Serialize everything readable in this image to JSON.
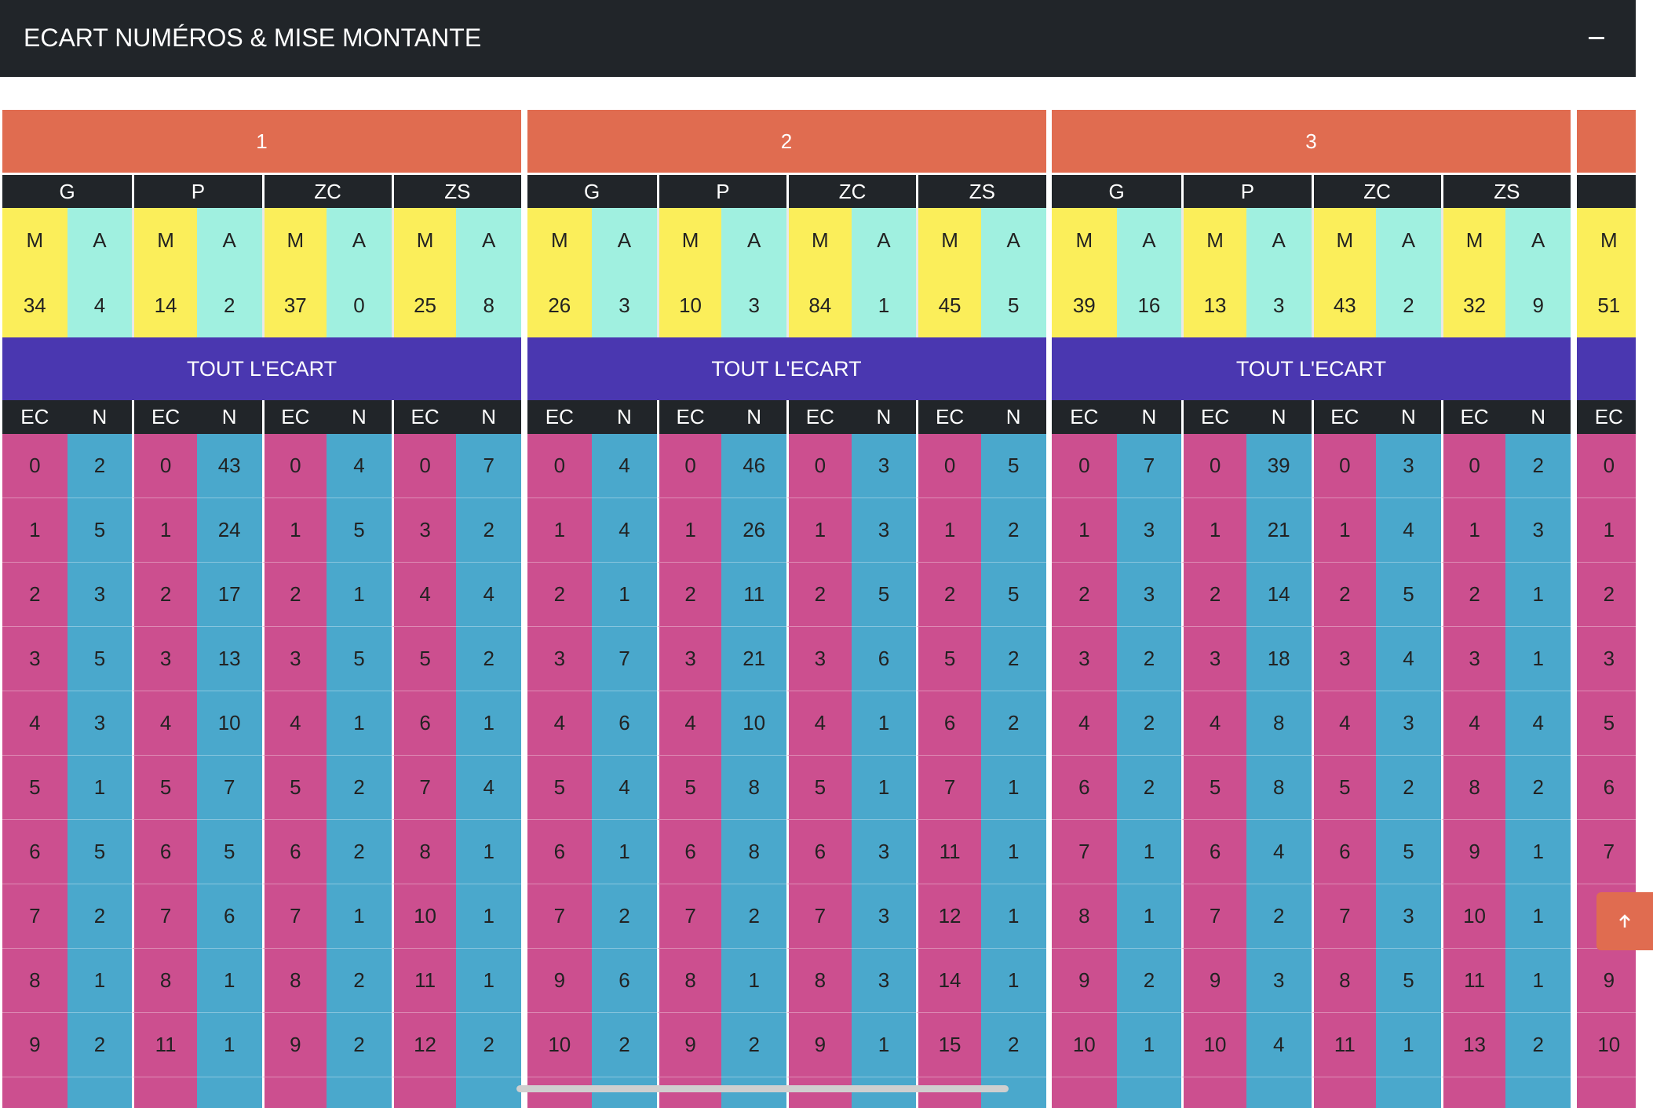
{
  "header": {
    "title": "ECART NUMÉROS & MISE MONTANTE"
  },
  "panels": [
    {
      "title": "1",
      "banner": "TOUT L'ECART",
      "groups": [
        {
          "name": "G",
          "m_label": "M",
          "a_label": "A",
          "m": 34,
          "a": 4,
          "ec_label": "EC",
          "n_label": "N",
          "rows": [
            [
              0,
              2
            ],
            [
              1,
              5
            ],
            [
              2,
              3
            ],
            [
              3,
              5
            ],
            [
              4,
              3
            ],
            [
              5,
              1
            ],
            [
              6,
              5
            ],
            [
              7,
              2
            ],
            [
              8,
              1
            ],
            [
              9,
              2
            ]
          ]
        },
        {
          "name": "P",
          "m_label": "M",
          "a_label": "A",
          "m": 14,
          "a": 2,
          "ec_label": "EC",
          "n_label": "N",
          "rows": [
            [
              0,
              43
            ],
            [
              1,
              24
            ],
            [
              2,
              17
            ],
            [
              3,
              13
            ],
            [
              4,
              10
            ],
            [
              5,
              7
            ],
            [
              6,
              5
            ],
            [
              7,
              6
            ],
            [
              8,
              1
            ],
            [
              11,
              1
            ]
          ]
        },
        {
          "name": "ZC",
          "m_label": "M",
          "a_label": "A",
          "m": 37,
          "a": 0,
          "ec_label": "EC",
          "n_label": "N",
          "rows": [
            [
              0,
              4
            ],
            [
              1,
              5
            ],
            [
              2,
              1
            ],
            [
              3,
              5
            ],
            [
              4,
              1
            ],
            [
              5,
              2
            ],
            [
              6,
              2
            ],
            [
              7,
              1
            ],
            [
              8,
              2
            ],
            [
              9,
              2
            ]
          ]
        },
        {
          "name": "ZS",
          "m_label": "M",
          "a_label": "A",
          "m": 25,
          "a": 8,
          "ec_label": "EC",
          "n_label": "N",
          "rows": [
            [
              0,
              7
            ],
            [
              3,
              2
            ],
            [
              4,
              4
            ],
            [
              5,
              2
            ],
            [
              6,
              1
            ],
            [
              7,
              4
            ],
            [
              8,
              1
            ],
            [
              10,
              1
            ],
            [
              11,
              1
            ],
            [
              12,
              2
            ]
          ]
        }
      ]
    },
    {
      "title": "2",
      "banner": "TOUT L'ECART",
      "groups": [
        {
          "name": "G",
          "m_label": "M",
          "a_label": "A",
          "m": 26,
          "a": 3,
          "ec_label": "EC",
          "n_label": "N",
          "rows": [
            [
              0,
              4
            ],
            [
              1,
              4
            ],
            [
              2,
              1
            ],
            [
              3,
              7
            ],
            [
              4,
              6
            ],
            [
              5,
              4
            ],
            [
              6,
              1
            ],
            [
              7,
              2
            ],
            [
              9,
              6
            ],
            [
              10,
              2
            ]
          ]
        },
        {
          "name": "P",
          "m_label": "M",
          "a_label": "A",
          "m": 10,
          "a": 3,
          "ec_label": "EC",
          "n_label": "N",
          "rows": [
            [
              0,
              46
            ],
            [
              1,
              26
            ],
            [
              2,
              11
            ],
            [
              3,
              21
            ],
            [
              4,
              10
            ],
            [
              5,
              8
            ],
            [
              6,
              8
            ],
            [
              7,
              2
            ],
            [
              8,
              1
            ],
            [
              9,
              2
            ]
          ]
        },
        {
          "name": "ZC",
          "m_label": "M",
          "a_label": "A",
          "m": 84,
          "a": 1,
          "ec_label": "EC",
          "n_label": "N",
          "rows": [
            [
              0,
              3
            ],
            [
              1,
              3
            ],
            [
              2,
              5
            ],
            [
              3,
              6
            ],
            [
              4,
              1
            ],
            [
              5,
              1
            ],
            [
              6,
              3
            ],
            [
              7,
              3
            ],
            [
              8,
              3
            ],
            [
              9,
              1
            ]
          ]
        },
        {
          "name": "ZS",
          "m_label": "M",
          "a_label": "A",
          "m": 45,
          "a": 5,
          "ec_label": "EC",
          "n_label": "N",
          "rows": [
            [
              0,
              5
            ],
            [
              1,
              2
            ],
            [
              2,
              5
            ],
            [
              5,
              2
            ],
            [
              6,
              2
            ],
            [
              7,
              1
            ],
            [
              11,
              1
            ],
            [
              12,
              1
            ],
            [
              14,
              1
            ],
            [
              15,
              2
            ]
          ]
        }
      ]
    },
    {
      "title": "3",
      "banner": "TOUT L'ECART",
      "groups": [
        {
          "name": "G",
          "m_label": "M",
          "a_label": "A",
          "m": 39,
          "a": 16,
          "ec_label": "EC",
          "n_label": "N",
          "rows": [
            [
              0,
              7
            ],
            [
              1,
              3
            ],
            [
              2,
              3
            ],
            [
              3,
              2
            ],
            [
              4,
              2
            ],
            [
              6,
              2
            ],
            [
              7,
              1
            ],
            [
              8,
              1
            ],
            [
              9,
              2
            ],
            [
              10,
              1
            ]
          ]
        },
        {
          "name": "P",
          "m_label": "M",
          "a_label": "A",
          "m": 13,
          "a": 3,
          "ec_label": "EC",
          "n_label": "N",
          "rows": [
            [
              0,
              39
            ],
            [
              1,
              21
            ],
            [
              2,
              14
            ],
            [
              3,
              18
            ],
            [
              4,
              8
            ],
            [
              5,
              8
            ],
            [
              6,
              4
            ],
            [
              7,
              2
            ],
            [
              9,
              3
            ],
            [
              10,
              4
            ]
          ]
        },
        {
          "name": "ZC",
          "m_label": "M",
          "a_label": "A",
          "m": 43,
          "a": 2,
          "ec_label": "EC",
          "n_label": "N",
          "rows": [
            [
              0,
              3
            ],
            [
              1,
              4
            ],
            [
              2,
              5
            ],
            [
              3,
              4
            ],
            [
              4,
              3
            ],
            [
              5,
              2
            ],
            [
              6,
              5
            ],
            [
              7,
              3
            ],
            [
              8,
              5
            ],
            [
              11,
              1
            ]
          ]
        },
        {
          "name": "ZS",
          "m_label": "M",
          "a_label": "A",
          "m": 32,
          "a": 9,
          "ec_label": "EC",
          "n_label": "N",
          "rows": [
            [
              0,
              2
            ],
            [
              1,
              3
            ],
            [
              2,
              1
            ],
            [
              3,
              1
            ],
            [
              4,
              4
            ],
            [
              8,
              2
            ],
            [
              9,
              1
            ],
            [
              10,
              1
            ],
            [
              11,
              1
            ],
            [
              13,
              2
            ]
          ]
        }
      ]
    },
    {
      "groups": [
        {
          "m_label": "M",
          "m": 51,
          "ec_label": "EC",
          "rows": [
            [
              0
            ],
            [
              1
            ],
            [
              2
            ],
            [
              3
            ],
            [
              5
            ],
            [
              6
            ],
            [
              7
            ],
            [
              null
            ],
            [
              9
            ],
            [
              10
            ]
          ]
        }
      ]
    }
  ]
}
